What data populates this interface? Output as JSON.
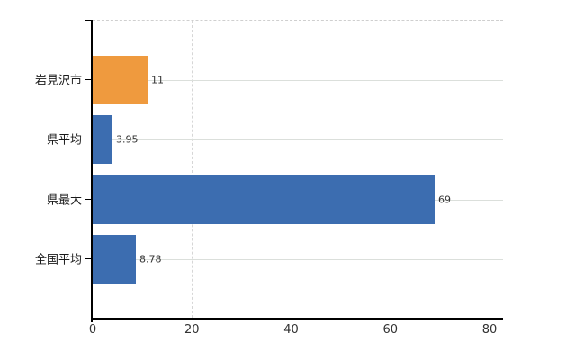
{
  "chart_data": {
    "type": "bar",
    "orientation": "horizontal",
    "title": "",
    "xlabel": "",
    "ylabel": "",
    "categories": [
      "岩見沢市",
      "県平均",
      "県最大",
      "全国平均"
    ],
    "values": [
      11,
      3.95,
      69,
      8.78
    ],
    "value_labels": [
      "11",
      "3.95",
      "69",
      "8.78"
    ],
    "bar_colors": [
      "#ef9a3e",
      "#3c6db0",
      "#3c6db0",
      "#3c6db0"
    ],
    "x_ticks": [
      0,
      20,
      40,
      60,
      80
    ],
    "x_tick_labels": [
      "0",
      "20",
      "40",
      "60",
      "80"
    ],
    "xlim": [
      0,
      82.7
    ],
    "grid": true,
    "legend": false,
    "colors": {
      "highlight_bar": "#ef9a3e",
      "default_bar": "#3c6db0",
      "gridline": "#dbdfdb",
      "axis": "#000000",
      "background": "#ffffff"
    }
  }
}
